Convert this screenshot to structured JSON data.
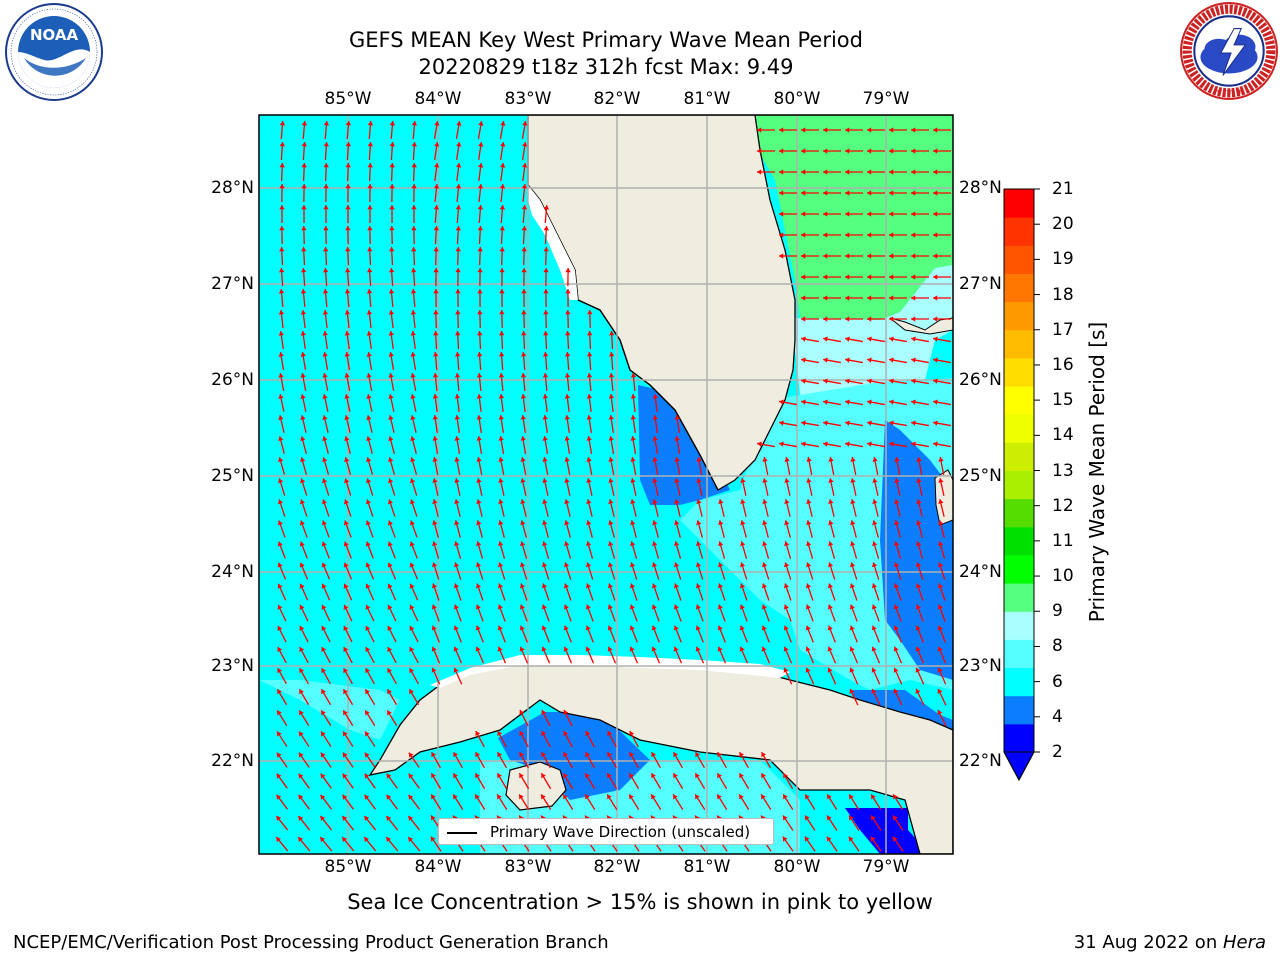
{
  "header": {
    "title_line1": "GEFS MEAN Key West Primary Wave Mean Period",
    "title_line2": "20220829 t18z 312h fcst   Max: 9.49"
  },
  "logos": {
    "noaa": {
      "name": "noaa-logo",
      "text": "NOAA",
      "ring_text": "NATIONAL OCEANIC AND ATMOSPHERIC ADMINISTRATION · U.S. DEPARTMENT OF COMMERCE"
    },
    "nws": {
      "name": "national-weather-service-logo",
      "ring_text": "NATIONAL WEATHER SERVICE"
    }
  },
  "map": {
    "lon_labels": [
      "85°W",
      "84°W",
      "83°W",
      "82°W",
      "81°W",
      "80°W",
      "79°W"
    ],
    "lat_labels": [
      "28°N",
      "27°N",
      "26°N",
      "25°N",
      "24°N",
      "23°N",
      "22°N"
    ],
    "lon_range": [
      -86.0,
      -78.3
    ],
    "lat_range": [
      21.1,
      28.75
    ],
    "colors": {
      "land": "#eeeddf",
      "sea_4_6": "#00ffff",
      "sea_2_4": "#0a7eff",
      "sea_lt2": "#0000ff",
      "sea_6_8": "#55ffff",
      "sea_8_9": "#a9ffff",
      "sea_9_10": "#55ff7f",
      "arrow": "#ff0000",
      "grid": "#b0b0b0",
      "coast": "#000000"
    },
    "legend_text": "Primary Wave Direction (unscaled)",
    "field": {
      "dominant_range": "4-6 s",
      "regions": [
        {
          "area": "Gulf of Mexico west of Florida",
          "period": "4-6 s",
          "direction": "toward north (south-westerly swell west of 84°W turning north-westward further south)"
        },
        {
          "area": "Florida Bay / SW Florida coast",
          "period": "2-4 s"
        },
        {
          "area": "Atlantic east of Florida near 27-28.5°N",
          "period": "9-10 s",
          "direction": "toward west"
        },
        {
          "area": "Atlantic near 26°N",
          "period": "8-9 s"
        },
        {
          "area": "Straits of Florida / Bahamas",
          "period": "6-8 s"
        },
        {
          "area": "Great Bahama Bank",
          "period": "2-4 s"
        },
        {
          "area": "Gulf of Batabano (south of Cuba)",
          "period": "2-4 s"
        },
        {
          "area": "near 79°W 21.5°N",
          "period": "< 2 s"
        }
      ]
    }
  },
  "colorbar": {
    "label": "Primary Wave Mean Period [s]",
    "ticks": [
      "21",
      "20",
      "19",
      "18",
      "17",
      "16",
      "15",
      "14",
      "13",
      "12",
      "11",
      "10",
      "9",
      "8",
      "6",
      "4",
      "2"
    ],
    "colors": [
      "#0000ff",
      "#0a7eff",
      "#00ffff",
      "#55ffff",
      "#a9ffff",
      "#55ff7f",
      "#00ff00",
      "#00e000",
      "#55dd00",
      "#aaee00",
      "#ccee00",
      "#eeff00",
      "#ffff00",
      "#ffdd00",
      "#ffbb00",
      "#ff9900",
      "#ff7700",
      "#ff5500",
      "#ff3300",
      "#ff0000"
    ],
    "extend_color": "#0000ff"
  },
  "footer": {
    "sea_ice_note": "Sea Ice Concentration > 15% is shown in pink to yellow",
    "left": "NCEP/EMC/Verification Post Processing Product Generation Branch",
    "right_date": "31 Aug 2022 on ",
    "right_host": "Hera"
  }
}
